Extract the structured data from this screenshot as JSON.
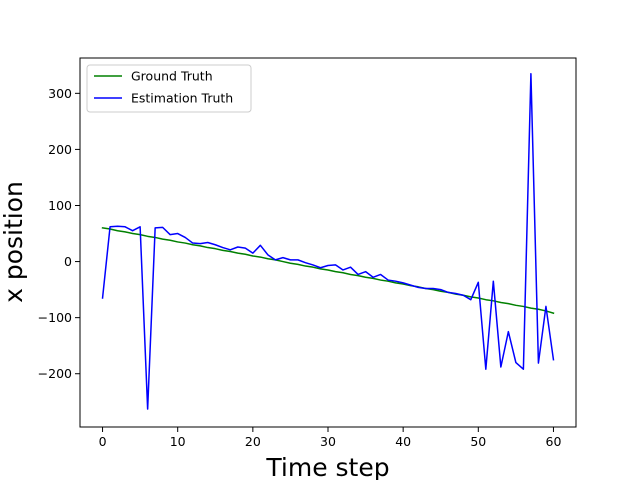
{
  "chart_data": {
    "type": "line",
    "title": "",
    "xlabel": "Time step",
    "ylabel": "x position",
    "xlim": [
      -3,
      63
    ],
    "ylim": [
      -295,
      363
    ],
    "xticks": [
      0,
      10,
      20,
      30,
      40,
      50,
      60
    ],
    "yticks": [
      -200,
      -100,
      0,
      100,
      200,
      300
    ],
    "grid": false,
    "legend_position": "upper-left",
    "x": [
      0,
      1,
      2,
      3,
      4,
      5,
      6,
      7,
      8,
      9,
      10,
      11,
      12,
      13,
      14,
      15,
      16,
      17,
      18,
      19,
      20,
      21,
      22,
      23,
      24,
      25,
      26,
      27,
      28,
      29,
      30,
      31,
      32,
      33,
      34,
      35,
      36,
      37,
      38,
      39,
      40,
      41,
      42,
      43,
      44,
      45,
      46,
      47,
      48,
      49,
      50,
      51,
      52,
      53,
      54,
      55,
      56,
      57,
      58,
      59,
      60
    ],
    "series": [
      {
        "name": "Ground Truth",
        "color": "#008000",
        "values": [
          60,
          58,
          55,
          53,
          50,
          48,
          45,
          43,
          40,
          38,
          35,
          33,
          30,
          28,
          25,
          23,
          20,
          18,
          15,
          13,
          10,
          8,
          5,
          3,
          0,
          -3,
          -5,
          -8,
          -10,
          -13,
          -15,
          -18,
          -20,
          -23,
          -25,
          -28,
          -30,
          -33,
          -35,
          -38,
          -40,
          -43,
          -45,
          -48,
          -50,
          -53,
          -55,
          -58,
          -60,
          -63,
          -65,
          -68,
          -70,
          -73,
          -75,
          -78,
          -80,
          -83,
          -85,
          -88,
          -92
        ]
      },
      {
        "name": "Estimation Truth",
        "color": "#0000ff",
        "values": [
          -65,
          62,
          63,
          62,
          55,
          62,
          -263,
          60,
          61,
          48,
          50,
          43,
          33,
          32,
          34,
          30,
          25,
          21,
          26,
          24,
          15,
          29,
          12,
          3,
          7,
          3,
          3,
          -2,
          -6,
          -11,
          -7,
          -6,
          -15,
          -10,
          -23,
          -18,
          -28,
          -23,
          -33,
          -35,
          -38,
          -42,
          -46,
          -48,
          -48,
          -50,
          -55,
          -57,
          -60,
          -68,
          -37,
          -192,
          -35,
          -188,
          -125,
          -180,
          -192,
          335,
          -181,
          -80,
          -175
        ]
      }
    ]
  }
}
